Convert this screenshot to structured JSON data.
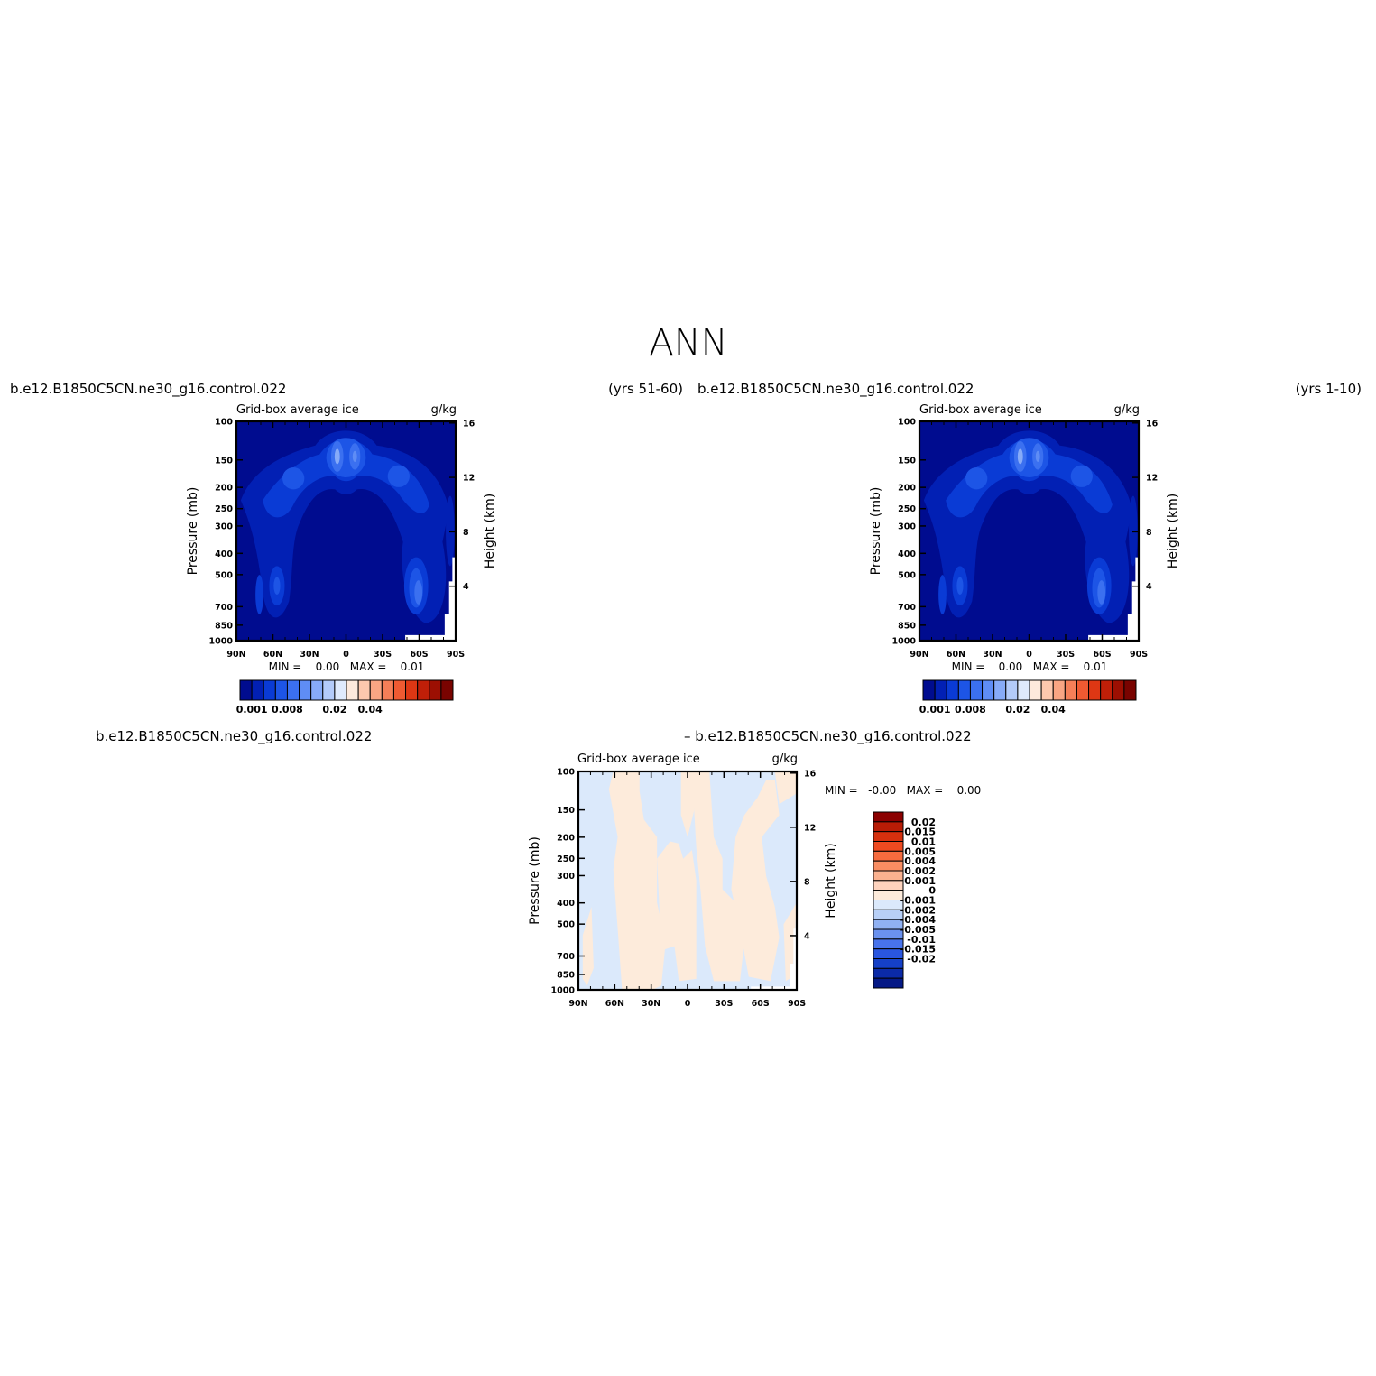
{
  "page_title": "ANN",
  "chart_data": [
    {
      "type": "contour",
      "case": "b.e12.B1850C5CN.ne30_g16.control.022",
      "period": "(yrs 51-60)",
      "variable": "Grid-box average ice",
      "units": "g/kg",
      "xlabel": "",
      "ylabel": "Pressure (mb)",
      "y2label": "Height (km)",
      "x_ticks": [
        "90N",
        "60N",
        "30N",
        "0",
        "30S",
        "60S",
        "90S"
      ],
      "y_ticks": [
        100,
        150,
        200,
        250,
        300,
        400,
        500,
        700,
        850,
        1000
      ],
      "y2_ticks": [
        16,
        12,
        8,
        4
      ],
      "ylim": [
        1000,
        100
      ],
      "stats_text": "MIN =    0.00   MAX =    0.01",
      "min": 0.0,
      "max": 0.01,
      "colorbar": {
        "orientation": "horizontal",
        "colors": [
          "#000c8f",
          "#0220b4",
          "#0a3bd5",
          "#1d55e6",
          "#3b70f0",
          "#5f8df5",
          "#87abf8",
          "#b3cbfa",
          "#dfeafd",
          "#fde9dc",
          "#fcc8ae",
          "#f9a583",
          "#f57f58",
          "#ef5a32",
          "#de3714",
          "#c01f08",
          "#9c0f02",
          "#790300"
        ],
        "tick_labels": [
          "0.001",
          "0.008",
          "0.02",
          "0.04"
        ]
      }
    },
    {
      "type": "contour",
      "case": "b.e12.B1850C5CN.ne30_g16.control.022",
      "period": "(yrs 1-10)",
      "variable": "Grid-box average ice",
      "units": "g/kg",
      "xlabel": "",
      "ylabel": "Pressure (mb)",
      "y2label": "Height (km)",
      "x_ticks": [
        "90N",
        "60N",
        "30N",
        "0",
        "30S",
        "60S",
        "90S"
      ],
      "y_ticks": [
        100,
        150,
        200,
        250,
        300,
        400,
        500,
        700,
        850,
        1000
      ],
      "y2_ticks": [
        16,
        12,
        8,
        4
      ],
      "ylim": [
        1000,
        100
      ],
      "stats_text": "MIN =    0.00   MAX =    0.01",
      "min": 0.0,
      "max": 0.01,
      "colorbar": {
        "orientation": "horizontal",
        "colors": [
          "#000c8f",
          "#0220b4",
          "#0a3bd5",
          "#1d55e6",
          "#3b70f0",
          "#5f8df5",
          "#87abf8",
          "#b3cbfa",
          "#dfeafd",
          "#fde9dc",
          "#fcc8ae",
          "#f9a583",
          "#f57f58",
          "#ef5a32",
          "#de3714",
          "#c01f08",
          "#9c0f02",
          "#790300"
        ],
        "tick_labels": [
          "0.001",
          "0.008",
          "0.02",
          "0.04"
        ]
      }
    },
    {
      "type": "contour",
      "case_left": "b.e12.B1850C5CN.ne30_g16.control.022",
      "case_right": "– b.e12.B1850C5CN.ne30_g16.control.022",
      "variable": "Grid-box average ice",
      "units": "g/kg",
      "xlabel": "",
      "ylabel": "Pressure (mb)",
      "y2label": "Height (km)",
      "x_ticks": [
        "90N",
        "60N",
        "30N",
        "0",
        "30S",
        "60S",
        "90S"
      ],
      "y_ticks": [
        100,
        150,
        200,
        250,
        300,
        400,
        500,
        700,
        850,
        1000
      ],
      "y2_ticks": [
        16,
        12,
        8,
        4
      ],
      "ylim": [
        1000,
        100
      ],
      "stats_text": "MIN =   -0.00   MAX =    0.00",
      "min": -0.0,
      "max": 0.0,
      "fill_colors": {
        "positive": "#fdebdb",
        "negative": "#dbe9fb"
      },
      "colorbar": {
        "orientation": "vertical",
        "colors": [
          "#8b0000",
          "#b81c06",
          "#d6300e",
          "#ef4a20",
          "#f76b3e",
          "#f98d62",
          "#fbb18f",
          "#fdd2bd",
          "#fdebdb",
          "#dbe9fb",
          "#b7cff7",
          "#90b1f3",
          "#6a91ef",
          "#4873ec",
          "#2a56e0",
          "#1540c8",
          "#0b2aa8",
          "#051986"
        ],
        "tick_labels": [
          "0.02",
          "0.015",
          "0.01",
          "0.005",
          "0.004",
          "0.002",
          "0.001",
          "0",
          "-0.001",
          "-0.002",
          "-0.004",
          "-0.005",
          "-0.01",
          "-0.015",
          "-0.02"
        ]
      }
    }
  ]
}
